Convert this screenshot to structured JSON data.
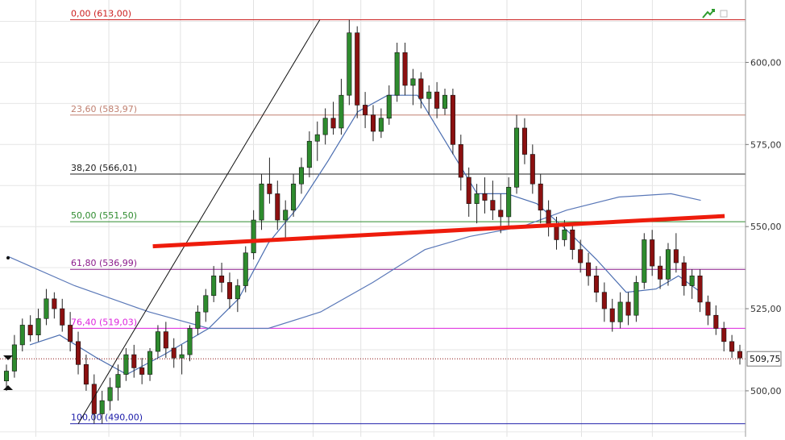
{
  "chart_data": {
    "type": "candlestick",
    "y_axis": {
      "position": "right",
      "ticks": [
        "500,00",
        "525,00",
        "550,00",
        "575,00",
        "600,00"
      ],
      "tick_values": [
        500,
        525,
        550,
        575,
        600
      ],
      "range": [
        486,
        619
      ]
    },
    "last_price": {
      "value": 509.75,
      "label": "509,75"
    },
    "fibonacci": {
      "high": 613.0,
      "low": 490.0,
      "levels": [
        {
          "label": "0,00 (613,00)",
          "value": 613.0,
          "color": "#cc2020"
        },
        {
          "label": "23,60 (583,97)",
          "value": 583.97,
          "color": "#c08070"
        },
        {
          "label": "38,20 (566,01)",
          "value": 566.01,
          "color": "#222222"
        },
        {
          "label": "50,00 (551,50)",
          "value": 551.5,
          "color": "#2e8b2e"
        },
        {
          "label": "61,80 (536,99)",
          "value": 536.99,
          "color": "#8b1a8b"
        },
        {
          "label": "76,40 (519,03)",
          "value": 519.03,
          "color": "#dd22dd"
        },
        {
          "label": "100,00 (490,00)",
          "value": 490.0,
          "color": "#1a1aa8"
        }
      ]
    },
    "trendline": {
      "color": "#ee1c0c",
      "start": [
        0.205,
        544.0
      ],
      "end": [
        0.972,
        553.2
      ]
    },
    "fib_anchor_line": {
      "start": [
        0.105,
        490.0
      ],
      "end": [
        0.429,
        613.0
      ]
    },
    "ohlc": [
      [
        503,
        508,
        500,
        506
      ],
      [
        506,
        517,
        504,
        514
      ],
      [
        514,
        522,
        512,
        520
      ],
      [
        520,
        523,
        515,
        517
      ],
      [
        517,
        525,
        515,
        522
      ],
      [
        522,
        531,
        520,
        528
      ],
      [
        528,
        530,
        522,
        525
      ],
      [
        525,
        528,
        518,
        520
      ],
      [
        520,
        524,
        512,
        515
      ],
      [
        515,
        518,
        505,
        508
      ],
      [
        508,
        511,
        500,
        502
      ],
      [
        502,
        505,
        490,
        493
      ],
      [
        493,
        500,
        490,
        497
      ],
      [
        497,
        504,
        494,
        501
      ],
      [
        501,
        508,
        497,
        505
      ],
      [
        505,
        513,
        503,
        511
      ],
      [
        511,
        514,
        504,
        507
      ],
      [
        507,
        510,
        502,
        505
      ],
      [
        505,
        513,
        503,
        512
      ],
      [
        512,
        520,
        510,
        518
      ],
      [
        518,
        521,
        510,
        513
      ],
      [
        513,
        516,
        507,
        510
      ],
      [
        510,
        514,
        505,
        511
      ],
      [
        511,
        520,
        509,
        519
      ],
      [
        519,
        526,
        517,
        524
      ],
      [
        524,
        531,
        521,
        529
      ],
      [
        529,
        538,
        527,
        535
      ],
      [
        535,
        539,
        530,
        533
      ],
      [
        533,
        536,
        525,
        528
      ],
      [
        528,
        534,
        524,
        532
      ],
      [
        532,
        544,
        530,
        542
      ],
      [
        542,
        555,
        540,
        552
      ],
      [
        552,
        566,
        549,
        563
      ],
      [
        563,
        571,
        557,
        560
      ],
      [
        560,
        564,
        549,
        552
      ],
      [
        552,
        558,
        546,
        555
      ],
      [
        555,
        566,
        553,
        563
      ],
      [
        563,
        571,
        560,
        568
      ],
      [
        568,
        579,
        565,
        576
      ],
      [
        576,
        582,
        570,
        578
      ],
      [
        578,
        586,
        575,
        583
      ],
      [
        583,
        588,
        578,
        580
      ],
      [
        580,
        595,
        578,
        590
      ],
      [
        590,
        613,
        587,
        609
      ],
      [
        609,
        611,
        583,
        587
      ],
      [
        587,
        591,
        580,
        584
      ],
      [
        584,
        587,
        576,
        579
      ],
      [
        579,
        586,
        577,
        583
      ],
      [
        583,
        593,
        581,
        590
      ],
      [
        590,
        606,
        588,
        603
      ],
      [
        603,
        606,
        590,
        593
      ],
      [
        593,
        598,
        587,
        595
      ],
      [
        595,
        597,
        586,
        589
      ],
      [
        589,
        593,
        584,
        591
      ],
      [
        591,
        594,
        583,
        586
      ],
      [
        586,
        592,
        584,
        590
      ],
      [
        590,
        592,
        572,
        575
      ],
      [
        575,
        578,
        561,
        565
      ],
      [
        565,
        568,
        553,
        557
      ],
      [
        557,
        563,
        551,
        560
      ],
      [
        560,
        565,
        554,
        558
      ],
      [
        558,
        564,
        552,
        555
      ],
      [
        555,
        560,
        548,
        553
      ],
      [
        553,
        565,
        550,
        562
      ],
      [
        562,
        584,
        560,
        580
      ],
      [
        580,
        583,
        569,
        572
      ],
      [
        572,
        575,
        560,
        563
      ],
      [
        563,
        566,
        551,
        555
      ],
      [
        555,
        558,
        547,
        550
      ],
      [
        550,
        553,
        543,
        546
      ],
      [
        546,
        552,
        544,
        549
      ],
      [
        549,
        551,
        540,
        543
      ],
      [
        543,
        546,
        536,
        539
      ],
      [
        539,
        542,
        532,
        535
      ],
      [
        535,
        538,
        527,
        530
      ],
      [
        530,
        533,
        521,
        525
      ],
      [
        525,
        528,
        518,
        521
      ],
      [
        521,
        530,
        519,
        527
      ],
      [
        527,
        530,
        520,
        523
      ],
      [
        523,
        535,
        521,
        533
      ],
      [
        533,
        548,
        531,
        546
      ],
      [
        546,
        549,
        535,
        538
      ],
      [
        538,
        541,
        531,
        534
      ],
      [
        534,
        545,
        532,
        543
      ],
      [
        543,
        548,
        536,
        539
      ],
      [
        539,
        541,
        529,
        532
      ],
      [
        532,
        537,
        528,
        535
      ],
      [
        535,
        537,
        524,
        527
      ],
      [
        527,
        529,
        520,
        523
      ],
      [
        523,
        526,
        517,
        519
      ],
      [
        519,
        521,
        512,
        515
      ],
      [
        515,
        517,
        510,
        512
      ],
      [
        512,
        514,
        508,
        510
      ]
    ],
    "moving_averages": [
      {
        "name_color": "#5a78b8",
        "points": [
          [
            0.01,
            541
          ],
          [
            0.1,
            532
          ],
          [
            0.2,
            524
          ],
          [
            0.28,
            519
          ],
          [
            0.36,
            519
          ],
          [
            0.43,
            524
          ],
          [
            0.5,
            533
          ],
          [
            0.57,
            543
          ],
          [
            0.63,
            547
          ],
          [
            0.7,
            550
          ],
          [
            0.76,
            555
          ],
          [
            0.83,
            559
          ],
          [
            0.9,
            560
          ],
          [
            0.94,
            558
          ]
        ]
      },
      {
        "name_color": "#4a6db0",
        "points": [
          [
            0.04,
            514
          ],
          [
            0.08,
            517
          ],
          [
            0.13,
            510
          ],
          [
            0.17,
            505
          ],
          [
            0.22,
            511
          ],
          [
            0.28,
            519
          ],
          [
            0.32,
            528
          ],
          [
            0.36,
            545
          ],
          [
            0.4,
            556
          ],
          [
            0.44,
            570
          ],
          [
            0.48,
            585
          ],
          [
            0.52,
            590
          ],
          [
            0.56,
            590
          ],
          [
            0.6,
            575
          ],
          [
            0.64,
            560
          ],
          [
            0.68,
            560
          ],
          [
            0.72,
            557
          ],
          [
            0.76,
            549
          ],
          [
            0.8,
            540
          ],
          [
            0.84,
            530
          ],
          [
            0.88,
            531
          ],
          [
            0.91,
            535
          ],
          [
            0.94,
            530
          ]
        ]
      }
    ]
  },
  "toolbar": {
    "trend_icon": "trend-arrow-icon",
    "window_icon": "restore-window-icon"
  }
}
